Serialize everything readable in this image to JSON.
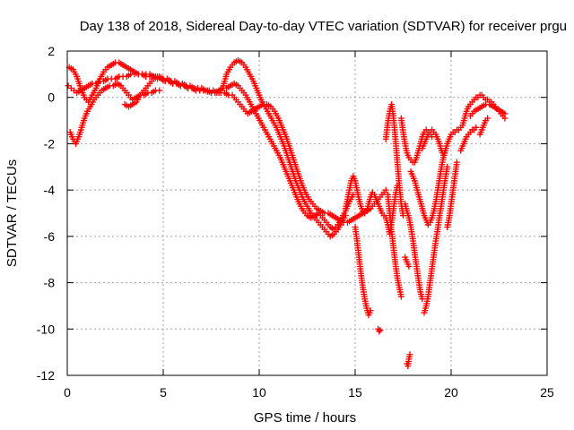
{
  "chart_data": {
    "type": "scatter",
    "title": "Day 138 of 2018, Sidereal Day-to-day VTEC variation (SDTVAR) for receiver prgu",
    "xlabel": "GPS time / hours",
    "ylabel": "SDTVAR / TECUs",
    "xlim": [
      0,
      25
    ],
    "ylim": [
      -12,
      2
    ],
    "xticks": [
      0,
      5,
      10,
      15,
      20,
      25
    ],
    "yticks": [
      -12,
      -10,
      -8,
      -6,
      -4,
      -2,
      0,
      2
    ],
    "grid": true,
    "marker": "plus",
    "color": "#ff0000",
    "series": [
      {
        "x": [
          0.05,
          0.2,
          0.35,
          0.5,
          0.7,
          0.9,
          1.1,
          1.3,
          1.5,
          1.7,
          1.9,
          2.1,
          2.3,
          2.5,
          2.7,
          2.9,
          3.1,
          3.3,
          3.5,
          3.7,
          3.9,
          4.1,
          4.3,
          4.5,
          4.7,
          4.9,
          5.1,
          5.3,
          5.5,
          5.7,
          5.9,
          6.1,
          6.3,
          6.5,
          6.7,
          6.9,
          7.1,
          7.3,
          7.5,
          7.7,
          7.9,
          8.1,
          8.3,
          8.5,
          8.7,
          8.9,
          9.1,
          9.3,
          9.5,
          9.7,
          9.9,
          10.1,
          10.3,
          10.5,
          10.7,
          10.9,
          11.1,
          11.3,
          11.5,
          11.7,
          11.9,
          12.1,
          12.3,
          12.5,
          12.7,
          12.9,
          13.1,
          13.3,
          13.5,
          13.7,
          13.9,
          14.1,
          14.3,
          14.5,
          14.7,
          14.9
        ],
        "y": [
          0.5,
          0.4,
          0.3,
          0.2,
          0.3,
          0.4,
          0.5,
          0.6,
          0.6,
          0.7,
          0.7,
          0.8,
          0.8,
          0.8,
          0.9,
          0.9,
          0.9,
          1.0,
          1.0,
          1.0,
          1.0,
          0.9,
          0.9,
          0.9,
          0.8,
          0.8,
          0.7,
          0.7,
          0.6,
          0.6,
          0.5,
          0.5,
          0.4,
          0.4,
          0.35,
          0.3,
          0.3,
          0.3,
          0.2,
          0.2,
          0.3,
          0.4,
          0.4,
          0.5,
          0.6,
          0.5,
          0.3,
          0.1,
          -0.2,
          -0.5,
          -0.8,
          -1.1,
          -1.4,
          -1.7,
          -2.0,
          -2.3,
          -2.6,
          -3.0,
          -3.4,
          -3.8,
          -4.2,
          -4.6,
          -4.9,
          -5.1,
          -5.2,
          -5.1,
          -5.0,
          -5.2,
          -5.4,
          -5.6,
          -5.7,
          -5.5,
          -5.2,
          -4.9,
          -4.5,
          -4.2
        ]
      },
      {
        "x": [
          0.1,
          0.3,
          0.5,
          0.7,
          0.9,
          1.1,
          1.3,
          1.5,
          1.7,
          1.9,
          2.1,
          2.3,
          2.5,
          2.7,
          2.9,
          3.1,
          3.3,
          3.5,
          3.7,
          3.9,
          4.1,
          4.3,
          4.5,
          4.7,
          4.9,
          5.1,
          5.3,
          5.5,
          5.7,
          5.9,
          6.1,
          6.3,
          6.5,
          6.7,
          6.9,
          7.1,
          7.3,
          7.5,
          7.7,
          7.9,
          8.1,
          8.3,
          8.5,
          8.7,
          8.9,
          9.1,
          9.3,
          9.5,
          9.7,
          9.9,
          10.1,
          10.3,
          10.5,
          10.7,
          10.9,
          11.1,
          11.3,
          11.5,
          11.7,
          11.9,
          12.1,
          12.3,
          12.5,
          12.7,
          12.9,
          13.1,
          13.3,
          13.5,
          13.7,
          13.9,
          14.1,
          14.3,
          14.5
        ],
        "y": [
          1.3,
          1.2,
          0.9,
          0.4,
          0.0,
          -0.2,
          0.1,
          0.4,
          0.8,
          1.1,
          1.3,
          1.4,
          1.5,
          1.5,
          1.4,
          1.3,
          1.2,
          1.1,
          1.0,
          1.0,
          1.0,
          1.0,
          0.9,
          0.9,
          0.8,
          0.7,
          0.7,
          0.6,
          0.6,
          0.5,
          0.5,
          0.4,
          0.4,
          0.3,
          0.3,
          0.3,
          0.25,
          0.2,
          0.2,
          0.2,
          0.4,
          1.0,
          1.3,
          1.5,
          1.6,
          1.5,
          1.3,
          1.0,
          0.7,
          0.3,
          -0.1,
          -0.4,
          -0.7,
          -1.0,
          -1.3,
          -1.7,
          -2.1,
          -2.6,
          -3.1,
          -3.6,
          -4.0,
          -4.4,
          -4.7,
          -5.0,
          -5.2,
          -5.4,
          -5.6,
          -5.8,
          -6.0,
          -5.9,
          -5.7,
          -5.4,
          -5.1
        ]
      },
      {
        "x": [
          0.15,
          0.3,
          0.45,
          0.6,
          0.75,
          0.9,
          1.05,
          1.2,
          1.4,
          1.6,
          1.8,
          2.0,
          2.2,
          2.4,
          2.6,
          2.8,
          3.0,
          3.2,
          3.4,
          3.6,
          3.8,
          4.0,
          4.2,
          4.4,
          4.6,
          4.8
        ],
        "y": [
          -1.5,
          -1.8,
          -2.0,
          -1.7,
          -1.3,
          -0.9,
          -0.6,
          -0.4,
          -0.1,
          0.1,
          0.3,
          0.4,
          0.5,
          0.5,
          0.6,
          0.5,
          0.3,
          0.1,
          -0.1,
          0.0,
          0.1,
          0.1,
          0.2,
          0.2,
          0.3,
          0.3
        ]
      },
      {
        "x": [
          3.0,
          3.2,
          3.4,
          3.6,
          3.8,
          4.0,
          4.2,
          4.4,
          4.6,
          4.8,
          5.0,
          5.2,
          5.4,
          5.6,
          5.8,
          6.0,
          6.2,
          6.4,
          6.6,
          6.8,
          7.0,
          7.2,
          7.4,
          7.6,
          7.8,
          8.0,
          8.2,
          8.4,
          8.6,
          8.8,
          9.0,
          9.2,
          9.4,
          9.6,
          9.8,
          10.0,
          10.2,
          10.4,
          10.6,
          10.8,
          11.0,
          11.2,
          11.4,
          11.6,
          11.8,
          12.0,
          12.2,
          12.4,
          12.6,
          12.8,
          13.0,
          13.2,
          13.4,
          13.6,
          13.8,
          14.0,
          14.2,
          14.4,
          14.6,
          14.8,
          15.0,
          15.2,
          15.4,
          15.6,
          15.8,
          16.0,
          16.2,
          16.4,
          16.6
        ],
        "y": [
          -0.3,
          -0.4,
          -0.3,
          -0.2,
          0.1,
          0.3,
          0.5,
          0.7,
          0.9,
          0.9,
          0.8,
          0.8,
          0.7,
          0.7,
          0.6,
          0.6,
          0.5,
          0.5,
          0.4,
          0.4,
          0.4,
          0.3,
          0.3,
          0.3,
          0.2,
          0.2,
          0.2,
          0.1,
          0.1,
          -0.1,
          -0.3,
          -0.5,
          -0.7,
          -0.6,
          -0.5,
          -0.4,
          -0.3,
          -0.3,
          -0.4,
          -0.6,
          -0.9,
          -1.3,
          -1.7,
          -2.2,
          -2.7,
          -3.2,
          -3.7,
          -4.1,
          -4.4,
          -4.6,
          -4.8,
          -4.9,
          -5.0,
          -5.0,
          -5.1,
          -5.2,
          -5.3,
          -5.4,
          -5.4,
          -5.3,
          -5.2,
          -5.1,
          -5.0,
          -4.9,
          -4.8,
          -4.6,
          -4.4,
          -4.2,
          -4.0
        ]
      },
      {
        "x": [
          14.5,
          14.6,
          14.7,
          14.8,
          14.9,
          15.0,
          15.1,
          15.2,
          15.3,
          15.4,
          15.5,
          15.6,
          15.7,
          15.8,
          15.9,
          16.0,
          16.1,
          16.2,
          16.3,
          16.4,
          16.5
        ],
        "y": [
          -4.8,
          -4.4,
          -4.0,
          -3.6,
          -3.4,
          -3.6,
          -4.0,
          -4.4,
          -4.7,
          -4.9,
          -5.0,
          -4.9,
          -4.6,
          -4.3,
          -4.1,
          -4.2,
          -4.4,
          -4.6,
          -4.8,
          -5.0,
          -5.1
        ]
      },
      {
        "x": [
          15.0,
          15.1,
          15.2,
          15.3,
          15.4,
          15.5,
          15.6,
          15.7,
          15.8
        ],
        "y": [
          -5.6,
          -6.2,
          -6.9,
          -7.6,
          -8.2,
          -8.7,
          -9.1,
          -9.4,
          -9.2
        ]
      },
      {
        "x": [
          16.2,
          16.25,
          16.3
        ],
        "y": [
          -10.0,
          -10.1,
          -10.05
        ]
      },
      {
        "x": [
          16.6,
          16.7,
          16.8,
          16.9,
          17.0,
          17.1,
          17.2,
          17.3,
          17.4,
          17.5
        ],
        "y": [
          -1.8,
          -1.1,
          -0.6,
          -0.3,
          -0.9,
          -1.8,
          -2.8,
          -3.8,
          -4.6,
          -5.1
        ]
      },
      {
        "x": [
          16.7,
          16.8,
          16.9,
          17.0,
          17.1,
          17.2,
          17.3,
          17.4
        ],
        "y": [
          -4.2,
          -5.0,
          -5.8,
          -6.5,
          -7.2,
          -7.8,
          -8.2,
          -8.6
        ]
      },
      {
        "x": [
          16.6,
          16.7,
          16.8,
          16.9,
          17.0,
          17.1,
          17.2
        ],
        "y": [
          -5.2,
          -5.5,
          -5.9,
          -5.4,
          -4.8,
          -4.2,
          -3.8
        ]
      },
      {
        "x": [
          17.4,
          17.5,
          17.6,
          17.7,
          17.8,
          17.9,
          18.0,
          18.1,
          18.2,
          18.3,
          18.4,
          18.5,
          18.6,
          18.7,
          18.8,
          18.9,
          19.0
        ],
        "y": [
          -0.9,
          -1.5,
          -2.0,
          -2.4,
          -2.6,
          -2.7,
          -2.8,
          -2.8,
          -2.6,
          -2.3,
          -2.0,
          -1.7,
          -1.5,
          -1.4,
          -1.5,
          -1.6,
          -1.7
        ]
      },
      {
        "x": [
          17.6,
          17.7,
          17.8,
          17.9,
          18.0,
          18.1,
          18.2,
          18.3,
          18.4,
          18.5
        ],
        "y": [
          -4.6,
          -4.9,
          -5.2,
          -5.6,
          -6.1,
          -6.7,
          -7.3,
          -7.9,
          -8.4,
          -8.7
        ]
      },
      {
        "x": [
          17.6,
          17.7,
          17.8
        ],
        "y": [
          -6.9,
          -7.1,
          -7.3
        ]
      },
      {
        "x": [
          17.7,
          17.75,
          17.8,
          17.85
        ],
        "y": [
          -11.5,
          -11.6,
          -11.3,
          -11.1
        ]
      },
      {
        "x": [
          17.9,
          18.0,
          18.1,
          18.2,
          18.3,
          18.4,
          18.5,
          18.6,
          18.7,
          18.8,
          18.9,
          19.0,
          19.1,
          19.2,
          19.3,
          19.4,
          19.5,
          19.6,
          19.7
        ],
        "y": [
          -3.2,
          -3.4,
          -3.6,
          -3.9,
          -4.2,
          -4.5,
          -4.8,
          -5.1,
          -5.3,
          -5.5,
          -5.4,
          -5.2,
          -4.9,
          -4.5,
          -4.0,
          -3.5,
          -3.0,
          -2.6,
          -2.3
        ]
      },
      {
        "x": [
          18.5,
          18.6,
          18.7,
          18.8,
          18.9,
          19.0,
          19.1,
          19.2,
          19.3,
          19.4,
          19.5,
          19.6,
          19.7,
          19.8,
          19.9,
          20.0,
          20.1,
          20.2,
          20.3,
          20.4,
          20.5,
          20.6,
          20.7,
          20.8,
          20.9,
          21.0,
          21.1,
          21.2,
          21.3,
          21.4,
          21.5,
          21.6,
          21.7,
          21.8,
          21.9,
          22.0,
          22.1,
          22.2,
          22.3,
          22.4,
          22.5,
          22.6,
          22.7,
          22.8
        ],
        "y": [
          -2.2,
          -2.0,
          -1.8,
          -1.6,
          -1.5,
          -1.4,
          -1.5,
          -1.6,
          -1.8,
          -2.0,
          -2.3,
          -2.5,
          -2.3,
          -2.0,
          -1.8,
          -1.6,
          -1.5,
          -1.5,
          -1.4,
          -1.4,
          -1.3,
          -1.2,
          -0.9,
          -0.6,
          -0.4,
          -0.3,
          -0.2,
          -0.1,
          0.0,
          0.0,
          0.1,
          0.1,
          0.0,
          -0.1,
          -0.1,
          -0.2,
          -0.2,
          -0.3,
          -0.4,
          -0.5,
          -0.6,
          -0.7,
          -0.8,
          -0.9
        ]
      },
      {
        "x": [
          18.6,
          18.7,
          18.8,
          18.9,
          19.0,
          19.1,
          19.2,
          19.3,
          19.4,
          19.5,
          19.6,
          19.7,
          19.8
        ],
        "y": [
          -9.3,
          -9.0,
          -8.6,
          -8.0,
          -7.4,
          -6.8,
          -6.2,
          -5.7,
          -5.1,
          -4.6,
          -4.0,
          -3.5,
          -3.0
        ]
      },
      {
        "x": [
          19.8,
          19.9,
          20.0,
          20.1,
          20.2,
          20.3
        ],
        "y": [
          -5.6,
          -5.2,
          -4.6,
          -4.0,
          -3.4,
          -2.8
        ]
      },
      {
        "x": [
          20.5,
          20.6,
          20.7,
          20.8,
          20.9,
          21.0,
          21.1,
          21.2,
          21.3
        ],
        "y": [
          -2.3,
          -2.1,
          -1.9,
          -1.7,
          -1.6,
          -1.5,
          -1.4,
          -1.4,
          -1.3
        ]
      },
      {
        "x": [
          21.0,
          21.2,
          21.4,
          21.6,
          21.8,
          22.0,
          22.2,
          22.4,
          22.6,
          22.8
        ],
        "y": [
          -0.8,
          -0.6,
          -0.5,
          -0.4,
          -0.3,
          -0.3,
          -0.4,
          -0.5,
          -0.6,
          -0.7
        ]
      },
      {
        "x": [
          21.5,
          21.6,
          21.7,
          21.8,
          21.9
        ],
        "y": [
          -1.6,
          -1.4,
          -1.2,
          -1.0,
          -0.9
        ]
      }
    ]
  }
}
